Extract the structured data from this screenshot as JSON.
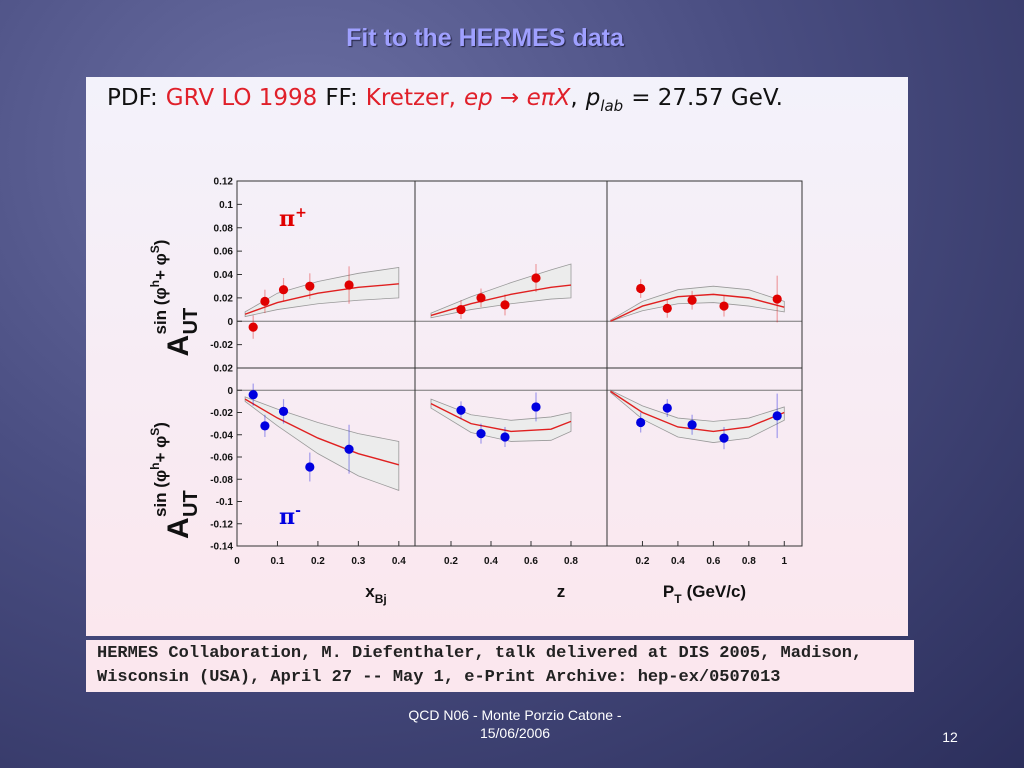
{
  "slide": {
    "title": "Fit to the HERMES data",
    "footer": "QCD N06 - Monte Porzio Catone - 15/06/2006",
    "page": "12"
  },
  "header": {
    "pdf_label": "PDF:",
    "pdf": "GRV LO 1998",
    "ff_label": "FF:",
    "ff": "Kretzer,",
    "process": "ep → eπX",
    "comma": ",",
    "p": "p",
    "p_sub": "lab",
    "energy": "= 27.57 GeV."
  },
  "caption": [
    "HERMES Collaboration, M. Diefenthaler, talk delivered at DIS 2005, Madison,",
    "Wisconsin (USA), April 27 -- May 1, e-Print Archive:  hep-ex/0507013"
  ],
  "chart_data": [
    {
      "type": "fit",
      "annotation": {
        "text": "π",
        "sup": "+",
        "color": "#e00000"
      },
      "ylabel": {
        "main": "A",
        "sub": "UT",
        "sup": [
          "sin (φ",
          "h",
          "+ φ",
          "S",
          ")"
        ]
      },
      "xlim": [
        0,
        0.44
      ],
      "ylim": [
        -0.04,
        0.12
      ],
      "yticks": [
        -0.02,
        0,
        0.02,
        0.04,
        0.06,
        0.08,
        0.1,
        0.12
      ],
      "points": {
        "color": "#e00000",
        "x": [
          0.04,
          0.069,
          0.115,
          0.18,
          0.277
        ],
        "values": [
          -0.005,
          0.017,
          0.027,
          0.03,
          0.031
        ],
        "errors": [
          0.01,
          0.01,
          0.01,
          0.011,
          0.016
        ]
      },
      "fit": {
        "color": "#e02020",
        "x": [
          0.02,
          0.1,
          0.2,
          0.3,
          0.4
        ],
        "values": [
          0.006,
          0.016,
          0.024,
          0.029,
          0.032
        ]
      },
      "band": {
        "color": "#ececec",
        "x": [
          0.02,
          0.1,
          0.2,
          0.3,
          0.4
        ],
        "upper": [
          0.008,
          0.024,
          0.034,
          0.041,
          0.046
        ],
        "lower": [
          0.004,
          0.01,
          0.015,
          0.018,
          0.02
        ]
      }
    },
    {
      "type": "fit",
      "xlim": [
        0.02,
        0.98
      ],
      "ylim": [
        -0.04,
        0.12
      ],
      "points": {
        "color": "#e00000",
        "x": [
          0.25,
          0.35,
          0.47,
          0.625
        ],
        "values": [
          0.01,
          0.02,
          0.014,
          0.037
        ],
        "errors": [
          0.008,
          0.008,
          0.009,
          0.012
        ]
      },
      "fit": {
        "color": "#e02020",
        "x": [
          0.1,
          0.3,
          0.5,
          0.7,
          0.8
        ],
        "values": [
          0.005,
          0.015,
          0.023,
          0.029,
          0.031
        ]
      },
      "band": {
        "color": "#ececec",
        "x": [
          0.1,
          0.3,
          0.5,
          0.7,
          0.8
        ],
        "upper": [
          0.007,
          0.021,
          0.033,
          0.044,
          0.049
        ],
        "lower": [
          0.003,
          0.01,
          0.015,
          0.019,
          0.02
        ]
      }
    },
    {
      "type": "fit",
      "xlim": [
        0,
        1.1
      ],
      "ylim": [
        -0.04,
        0.12
      ],
      "points": {
        "color": "#e00000",
        "x": [
          0.19,
          0.34,
          0.48,
          0.66,
          0.96
        ],
        "values": [
          0.028,
          0.011,
          0.018,
          0.013,
          0.019
        ],
        "errors": [
          0.008,
          0.008,
          0.008,
          0.009,
          0.02
        ]
      },
      "fit": {
        "color": "#e02020",
        "x": [
          0.02,
          0.2,
          0.4,
          0.6,
          0.8,
          1.0
        ],
        "values": [
          0,
          0.013,
          0.021,
          0.023,
          0.02,
          0.012
        ]
      },
      "band": {
        "color": "#ececec",
        "x": [
          0.02,
          0.2,
          0.4,
          0.6,
          0.8,
          1.0
        ],
        "upper": [
          0.001,
          0.017,
          0.027,
          0.03,
          0.027,
          0.017
        ],
        "lower": [
          0,
          0.009,
          0.015,
          0.016,
          0.013,
          0.008
        ]
      }
    },
    {
      "type": "fit",
      "annotation": {
        "text": "π",
        "sup": "-",
        "color": "#0000e0"
      },
      "ylabel": {
        "main": "A",
        "sub": "UT",
        "sup": [
          "sin (φ",
          "h",
          "+ φ",
          "S",
          ")"
        ]
      },
      "xlabel": {
        "text": "x",
        "sub": "Bj"
      },
      "xlim": [
        0,
        0.44
      ],
      "ylim": [
        -0.14,
        0.02
      ],
      "xticks": [
        0,
        0.1,
        0.2,
        0.3,
        0.4
      ],
      "yticks": [
        -0.14,
        -0.12,
        -0.1,
        -0.08,
        -0.06,
        -0.04,
        -0.02,
        0,
        0.02
      ],
      "points": {
        "color": "#0000e0",
        "x": [
          0.04,
          0.069,
          0.115,
          0.18,
          0.277
        ],
        "values": [
          -0.004,
          -0.032,
          -0.019,
          -0.069,
          -0.053
        ],
        "errors": [
          0.01,
          0.01,
          0.011,
          0.013,
          0.022
        ]
      },
      "fit": {
        "color": "#e02020",
        "x": [
          0.02,
          0.1,
          0.2,
          0.3,
          0.4
        ],
        "values": [
          -0.008,
          -0.025,
          -0.043,
          -0.057,
          -0.067
        ]
      },
      "band": {
        "color": "#ececec",
        "x": [
          0.02,
          0.1,
          0.2,
          0.3,
          0.4
        ],
        "upper": [
          -0.006,
          -0.017,
          -0.029,
          -0.039,
          -0.046
        ],
        "lower": [
          -0.01,
          -0.032,
          -0.057,
          -0.077,
          -0.09
        ]
      }
    },
    {
      "type": "fit",
      "xlabel": {
        "text": "z"
      },
      "xlim": [
        0.02,
        0.98
      ],
      "ylim": [
        -0.14,
        0.02
      ],
      "xticks": [
        0.2,
        0.4,
        0.6,
        0.8
      ],
      "points": {
        "color": "#0000e0",
        "x": [
          0.25,
          0.35,
          0.47,
          0.625
        ],
        "values": [
          -0.018,
          -0.039,
          -0.042,
          -0.015
        ],
        "errors": [
          0.008,
          0.009,
          0.009,
          0.013
        ]
      },
      "fit": {
        "color": "#e02020",
        "x": [
          0.1,
          0.3,
          0.5,
          0.7,
          0.8
        ],
        "values": [
          -0.012,
          -0.03,
          -0.037,
          -0.035,
          -0.028
        ]
      },
      "band": {
        "color": "#ececec",
        "x": [
          0.1,
          0.3,
          0.5,
          0.7,
          0.8
        ],
        "upper": [
          -0.008,
          -0.022,
          -0.027,
          -0.024,
          -0.02
        ],
        "lower": [
          -0.016,
          -0.038,
          -0.046,
          -0.045,
          -0.037
        ]
      }
    },
    {
      "type": "fit",
      "xlabel": {
        "text": "P",
        "sub": "T",
        "unit": "(GeV/c)"
      },
      "xlim": [
        0,
        1.1
      ],
      "ylim": [
        -0.14,
        0.02
      ],
      "xticks": [
        0.2,
        0.4,
        0.6,
        0.8,
        1
      ],
      "points": {
        "color": "#0000e0",
        "x": [
          0.19,
          0.34,
          0.48,
          0.66,
          0.96
        ],
        "values": [
          -0.029,
          -0.016,
          -0.031,
          -0.043,
          -0.023
        ],
        "errors": [
          0.009,
          0.008,
          0.009,
          0.01,
          0.02
        ]
      },
      "fit": {
        "color": "#e02020",
        "x": [
          0.02,
          0.2,
          0.4,
          0.6,
          0.8,
          1.0
        ],
        "values": [
          -0.001,
          -0.02,
          -0.033,
          -0.037,
          -0.033,
          -0.02
        ]
      },
      "band": {
        "color": "#ececec",
        "x": [
          0.02,
          0.2,
          0.4,
          0.6,
          0.8,
          1.0
        ],
        "upper": [
          0,
          -0.014,
          -0.025,
          -0.028,
          -0.025,
          -0.015
        ],
        "lower": [
          -0.002,
          -0.026,
          -0.042,
          -0.047,
          -0.043,
          -0.027
        ]
      }
    }
  ]
}
